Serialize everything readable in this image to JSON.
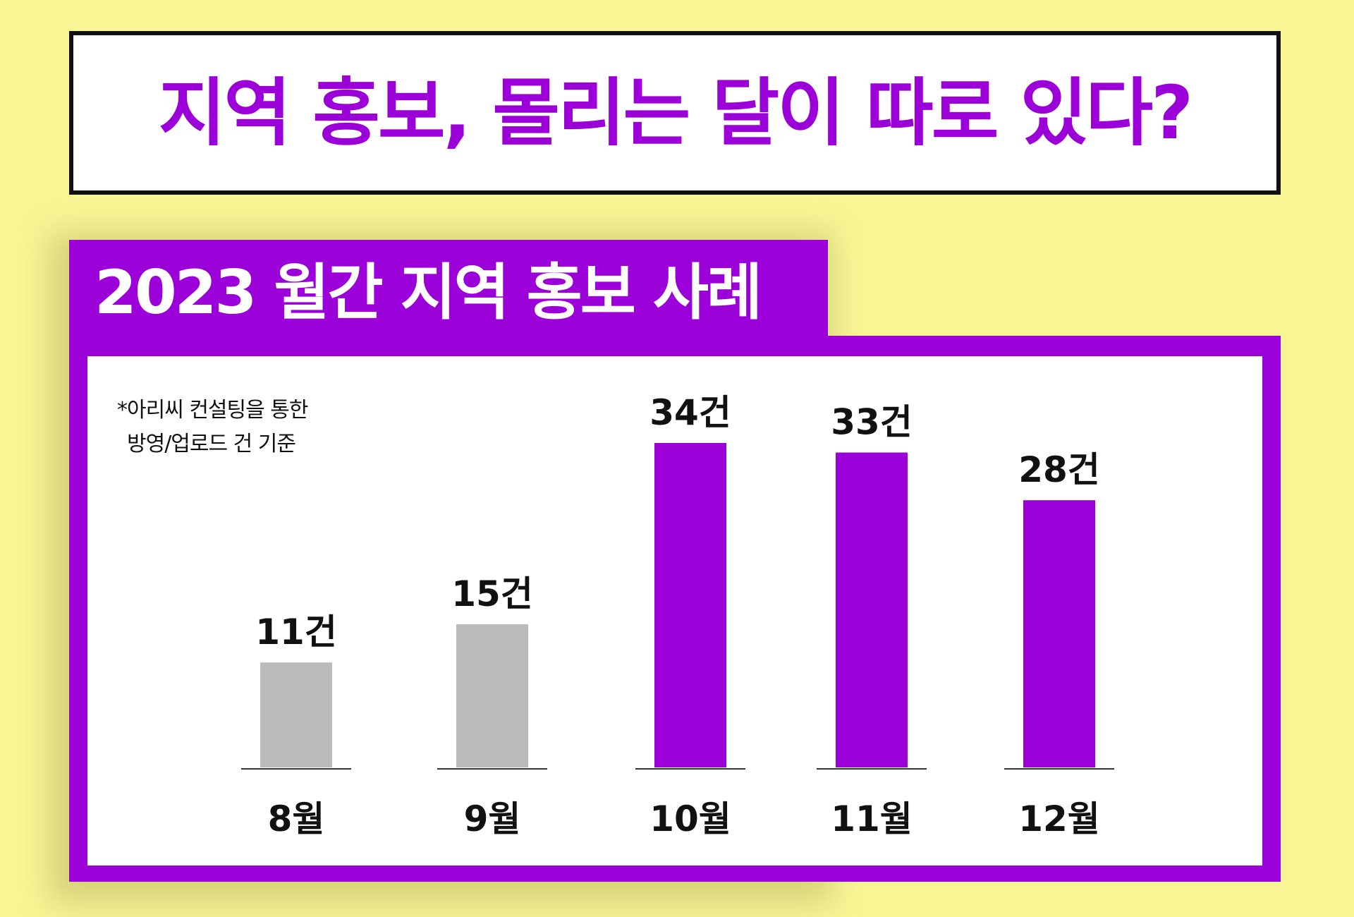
{
  "headline": "지역 홍보, 몰리는 달이 따로 있다?",
  "subtitle": "2023 월간 지역 홍보 사례",
  "note": {
    "line1": "*아리씨 컨설팅을 통한",
    "line2": "방영/업로드 건 기준"
  },
  "colors": {
    "background": "#f8f595",
    "accent": "#9b00d9",
    "muted_bar": "#bbbbbb"
  },
  "chart_data": {
    "type": "bar",
    "title": "2023 월간 지역 홍보 사례",
    "categories": [
      "8월",
      "9월",
      "10월",
      "11월",
      "12월"
    ],
    "values": [
      11,
      15,
      34,
      33,
      28
    ],
    "value_labels": [
      "11건",
      "15건",
      "34건",
      "33건",
      "28건"
    ],
    "bar_colors": [
      "#bbbbbb",
      "#bbbbbb",
      "#9b00d9",
      "#9b00d9",
      "#9b00d9"
    ],
    "ylim": [
      0,
      34
    ],
    "grid": false,
    "legend": "none",
    "xlabel": "",
    "ylabel": ""
  }
}
